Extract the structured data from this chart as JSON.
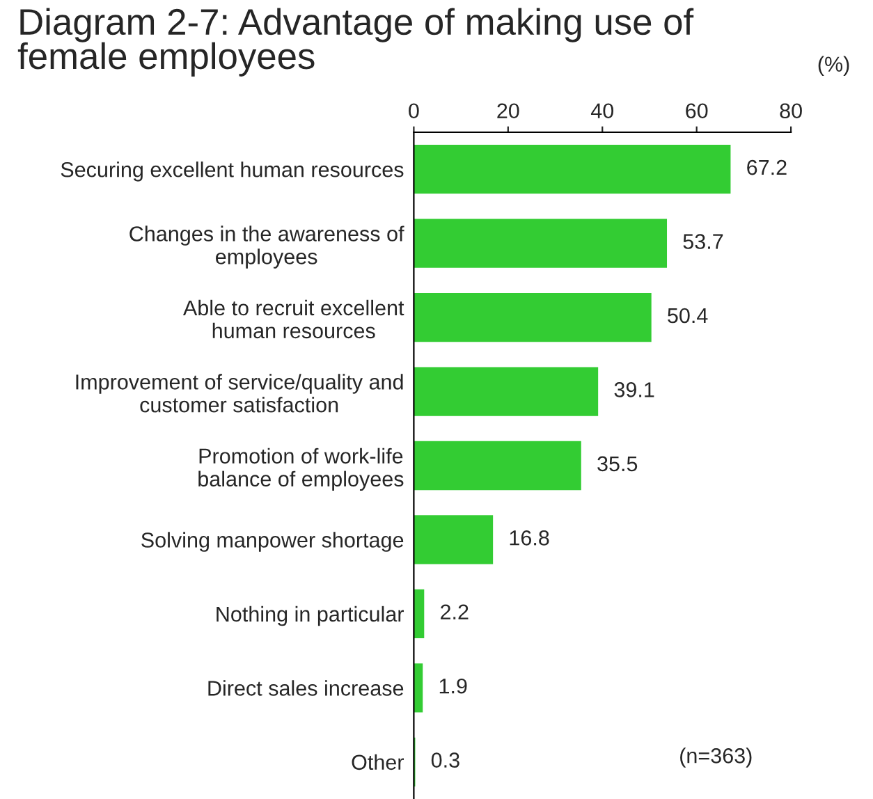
{
  "chart_data": {
    "type": "bar",
    "orientation": "horizontal",
    "title": "Diagram 2-7: Advantage of making use of\nfemale employees",
    "xlabel": "(%)",
    "categories": [
      "Securing excellent human resources",
      "Changes in the awareness of\nemployees",
      "Able to recruit excellent\nhuman resources",
      "Improvement of service/quality and\ncustomer satisfaction",
      "Promotion of work-life\nbalance of employees",
      "Solving manpower shortage",
      "Nothing in particular",
      "Direct sales increase",
      "Other"
    ],
    "values": [
      67.2,
      53.7,
      50.4,
      39.1,
      35.5,
      16.8,
      2.2,
      1.9,
      0.3
    ],
    "color": "#33cc33",
    "xlim": [
      0,
      80
    ],
    "xticks": [
      0,
      20,
      40,
      60,
      80
    ],
    "data_labels": true,
    "grid": false,
    "legend": false,
    "annotations": [
      "(n=363)"
    ]
  }
}
